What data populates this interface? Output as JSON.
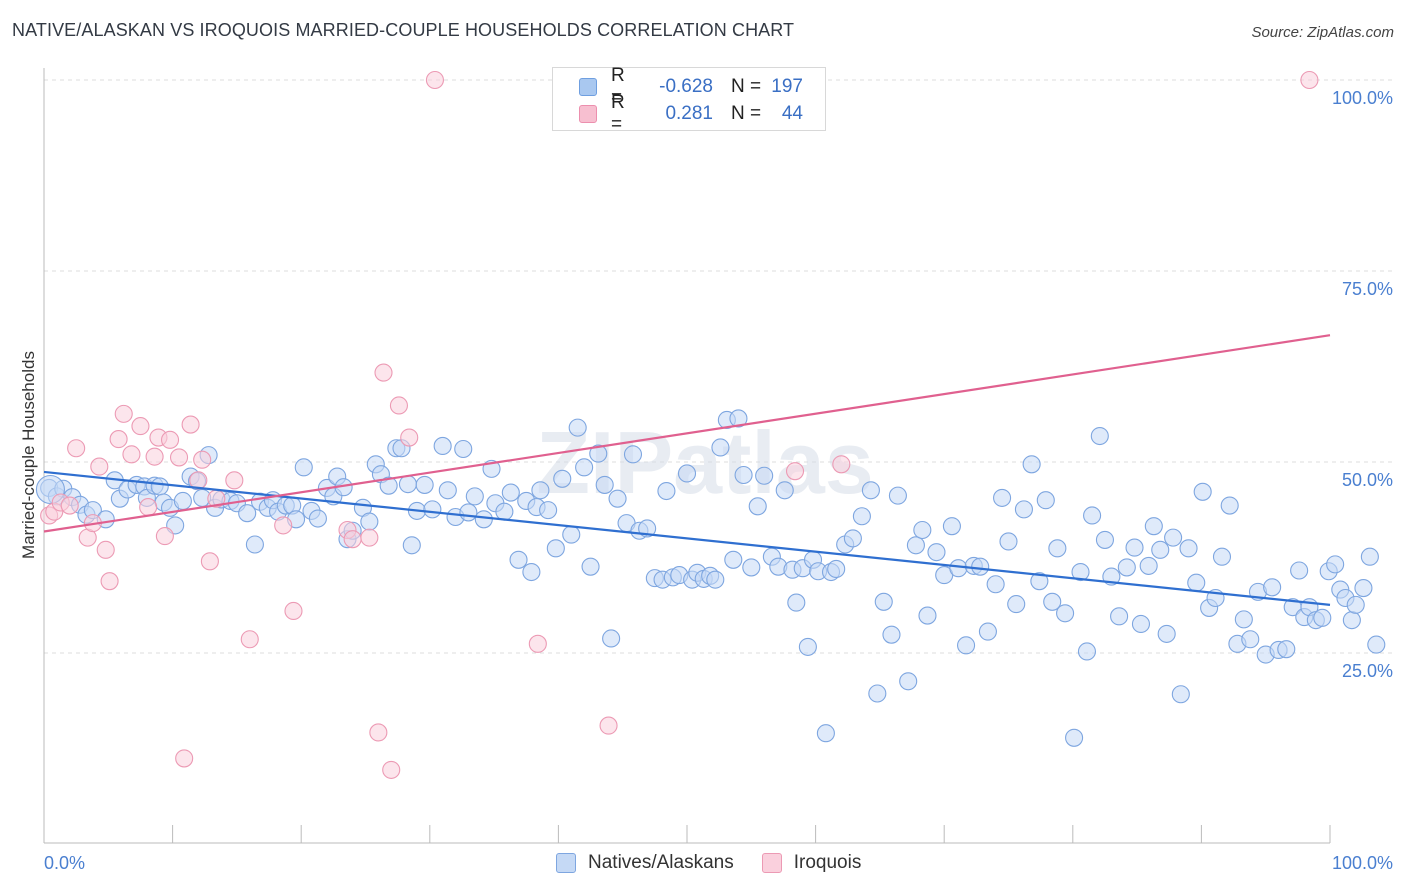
{
  "title": "NATIVE/ALASKAN VS IROQUOIS MARRIED-COUPLE HOUSEHOLDS CORRELATION CHART",
  "source": "Source: ZipAtlas.com",
  "watermark": "ZIPatlas",
  "legend": {
    "rows": [
      {
        "r_label": "R =",
        "r_value": "-0.628",
        "n_label": "N =",
        "n_value": "197",
        "color": "#a9c8f0",
        "stroke": "#6f9fe0"
      },
      {
        "r_label": "R =",
        "r_value": "0.281",
        "n_label": "N =",
        "n_value": "44",
        "color": "#f7bfd0",
        "stroke": "#ec8fae"
      }
    ]
  },
  "bottom_legend": [
    {
      "label": "Natives/Alaskans",
      "color": "#c5d9f5",
      "stroke": "#7ea6e0"
    },
    {
      "label": "Iroquois",
      "color": "#fad0dd",
      "stroke": "#ec9ab4"
    }
  ],
  "chart_data": {
    "type": "scatter",
    "title": "NATIVE/ALASKAN VS IROQUOIS MARRIED-COUPLE HOUSEHOLDS CORRELATION CHART",
    "xlabel": "",
    "ylabel": "Married-couple Households",
    "xlim": [
      0,
      100
    ],
    "ylim": [
      0,
      102
    ],
    "x_tick_labels": [
      "0.0%",
      "100.0%"
    ],
    "y_tick_labels": [
      "25.0%",
      "50.0%",
      "75.0%",
      "100.0%"
    ],
    "y_ticks": [
      25,
      50,
      75,
      100
    ],
    "grid": true,
    "series": [
      {
        "name": "Natives/Alaskans",
        "color": "#7ea6e0",
        "fill": "#c5d9f5",
        "trend": {
          "x": [
            0,
            100
          ],
          "y": [
            48.7,
            31.3
          ],
          "color": "#2f6fd0"
        },
        "points": [
          [
            0.4,
            46.6
          ],
          [
            1.0,
            45.5
          ],
          [
            1.5,
            46.5
          ],
          [
            2.2,
            45.4
          ],
          [
            2.8,
            44.4
          ],
          [
            3.3,
            43.1
          ],
          [
            3.8,
            43.7
          ],
          [
            4.8,
            42.5
          ],
          [
            5.5,
            47.6
          ],
          [
            5.9,
            45.2
          ],
          [
            6.5,
            46.4
          ],
          [
            7.2,
            47.0
          ],
          [
            7.8,
            46.8
          ],
          [
            8.0,
            45.3
          ],
          [
            8.6,
            46.9
          ],
          [
            9.0,
            46.8
          ],
          [
            9.3,
            44.7
          ],
          [
            9.8,
            44.0
          ],
          [
            10.2,
            41.7
          ],
          [
            10.8,
            44.9
          ],
          [
            11.4,
            48.1
          ],
          [
            11.9,
            47.5
          ],
          [
            12.3,
            45.3
          ],
          [
            12.8,
            50.9
          ],
          [
            13.3,
            44.0
          ],
          [
            13.8,
            45.1
          ],
          [
            14.5,
            44.9
          ],
          [
            15.0,
            44.6
          ],
          [
            15.8,
            43.3
          ],
          [
            16.4,
            39.2
          ],
          [
            16.8,
            44.8
          ],
          [
            17.4,
            44.0
          ],
          [
            17.8,
            45.0
          ],
          [
            18.2,
            43.5
          ],
          [
            18.8,
            44.3
          ],
          [
            19.3,
            44.3
          ],
          [
            19.6,
            42.5
          ],
          [
            20.2,
            49.3
          ],
          [
            20.8,
            43.6
          ],
          [
            21.3,
            42.6
          ],
          [
            22.0,
            46.6
          ],
          [
            22.5,
            45.5
          ],
          [
            22.8,
            48.1
          ],
          [
            23.3,
            46.7
          ],
          [
            23.6,
            39.9
          ],
          [
            24.0,
            41.0
          ],
          [
            24.8,
            44.0
          ],
          [
            25.3,
            42.2
          ],
          [
            25.8,
            49.7
          ],
          [
            26.2,
            48.4
          ],
          [
            26.8,
            46.9
          ],
          [
            27.4,
            51.8
          ],
          [
            27.8,
            51.8
          ],
          [
            28.3,
            47.1
          ],
          [
            28.6,
            39.1
          ],
          [
            29.0,
            43.6
          ],
          [
            29.6,
            47.0
          ],
          [
            30.2,
            43.8
          ],
          [
            31.0,
            52.1
          ],
          [
            31.4,
            46.3
          ],
          [
            32.0,
            42.8
          ],
          [
            32.6,
            51.7
          ],
          [
            33.0,
            43.4
          ],
          [
            33.5,
            45.5
          ],
          [
            34.2,
            42.5
          ],
          [
            34.8,
            49.1
          ],
          [
            35.1,
            44.6
          ],
          [
            35.8,
            43.5
          ],
          [
            36.3,
            46.0
          ],
          [
            36.9,
            37.2
          ],
          [
            37.5,
            44.9
          ],
          [
            37.9,
            35.6
          ],
          [
            38.3,
            44.1
          ],
          [
            38.6,
            46.3
          ],
          [
            39.2,
            43.7
          ],
          [
            39.8,
            38.7
          ],
          [
            40.3,
            47.8
          ],
          [
            41.0,
            40.5
          ],
          [
            41.5,
            54.5
          ],
          [
            42.0,
            49.3
          ],
          [
            42.5,
            36.3
          ],
          [
            43.1,
            51.1
          ],
          [
            43.6,
            47.0
          ],
          [
            44.1,
            26.9
          ],
          [
            44.6,
            45.2
          ],
          [
            45.3,
            42.0
          ],
          [
            45.8,
            51.0
          ],
          [
            46.3,
            41.0
          ],
          [
            46.9,
            41.3
          ],
          [
            47.5,
            34.8
          ],
          [
            48.1,
            34.6
          ],
          [
            48.4,
            46.2
          ],
          [
            48.9,
            34.9
          ],
          [
            49.4,
            35.2
          ],
          [
            50.0,
            48.5
          ],
          [
            50.4,
            34.6
          ],
          [
            50.8,
            35.5
          ],
          [
            51.3,
            34.7
          ],
          [
            51.8,
            35.1
          ],
          [
            52.2,
            34.6
          ],
          [
            52.6,
            51.9
          ],
          [
            53.1,
            55.5
          ],
          [
            53.6,
            37.2
          ],
          [
            54.0,
            55.7
          ],
          [
            54.4,
            48.3
          ],
          [
            55.0,
            36.2
          ],
          [
            55.5,
            44.2
          ],
          [
            56.0,
            48.2
          ],
          [
            56.6,
            37.6
          ],
          [
            57.1,
            36.3
          ],
          [
            57.6,
            46.3
          ],
          [
            58.2,
            35.9
          ],
          [
            58.5,
            31.6
          ],
          [
            59.0,
            36.1
          ],
          [
            59.4,
            25.8
          ],
          [
            59.8,
            37.2
          ],
          [
            60.2,
            35.7
          ],
          [
            60.8,
            14.5
          ],
          [
            61.2,
            35.6
          ],
          [
            61.6,
            36.0
          ],
          [
            62.3,
            39.2
          ],
          [
            62.9,
            40.0
          ],
          [
            63.6,
            42.9
          ],
          [
            64.3,
            46.3
          ],
          [
            64.8,
            19.7
          ],
          [
            65.3,
            31.7
          ],
          [
            65.9,
            27.4
          ],
          [
            66.4,
            45.6
          ],
          [
            67.2,
            21.3
          ],
          [
            67.8,
            39.1
          ],
          [
            68.3,
            41.1
          ],
          [
            68.7,
            29.9
          ],
          [
            69.4,
            38.2
          ],
          [
            70.0,
            35.2
          ],
          [
            70.6,
            41.6
          ],
          [
            71.1,
            36.1
          ],
          [
            71.7,
            26.0
          ],
          [
            72.3,
            36.4
          ],
          [
            72.8,
            36.3
          ],
          [
            73.4,
            27.8
          ],
          [
            74.0,
            34.0
          ],
          [
            74.5,
            45.3
          ],
          [
            75.0,
            39.6
          ],
          [
            75.6,
            31.4
          ],
          [
            76.2,
            43.8
          ],
          [
            76.8,
            49.7
          ],
          [
            77.4,
            34.4
          ],
          [
            77.9,
            45.0
          ],
          [
            78.4,
            31.7
          ],
          [
            78.8,
            38.7
          ],
          [
            79.4,
            30.2
          ],
          [
            80.1,
            13.9
          ],
          [
            80.6,
            35.6
          ],
          [
            81.1,
            25.2
          ],
          [
            81.5,
            43.0
          ],
          [
            82.1,
            53.4
          ],
          [
            82.5,
            39.8
          ],
          [
            83.0,
            35.0
          ],
          [
            83.6,
            29.8
          ],
          [
            84.2,
            36.2
          ],
          [
            84.8,
            38.8
          ],
          [
            85.3,
            28.8
          ],
          [
            85.9,
            36.4
          ],
          [
            86.3,
            41.6
          ],
          [
            86.8,
            38.5
          ],
          [
            87.3,
            27.5
          ],
          [
            87.8,
            40.1
          ],
          [
            88.4,
            19.6
          ],
          [
            89.0,
            38.7
          ],
          [
            89.6,
            34.2
          ],
          [
            90.1,
            46.1
          ],
          [
            90.6,
            30.9
          ],
          [
            91.1,
            32.2
          ],
          [
            91.6,
            37.6
          ],
          [
            92.2,
            44.3
          ],
          [
            92.8,
            26.2
          ],
          [
            93.3,
            29.4
          ],
          [
            93.8,
            26.8
          ],
          [
            94.4,
            33.0
          ],
          [
            95.0,
            24.8
          ],
          [
            95.5,
            33.6
          ],
          [
            96.0,
            25.4
          ],
          [
            96.6,
            25.5
          ],
          [
            97.1,
            31.0
          ],
          [
            97.6,
            35.8
          ],
          [
            98.0,
            29.7
          ],
          [
            98.4,
            31.0
          ],
          [
            98.9,
            29.3
          ],
          [
            99.4,
            29.6
          ],
          [
            99.9,
            35.7
          ],
          [
            100.4,
            36.6
          ],
          [
            100.8,
            33.3
          ],
          [
            101.2,
            32.2
          ],
          [
            101.7,
            29.3
          ],
          [
            102.0,
            31.3
          ],
          [
            102.6,
            33.5
          ],
          [
            103.1,
            37.6
          ],
          [
            103.6,
            26.1
          ]
        ]
      },
      {
        "name": "Iroquois",
        "color": "#ec9ab4",
        "fill": "#fad0dd",
        "trend": {
          "x": [
            0,
            100
          ],
          "y": [
            40.9,
            66.6
          ],
          "color": "#e0608f"
        },
        "points": [
          [
            0.4,
            43.0
          ],
          [
            0.8,
            43.5
          ],
          [
            1.3,
            44.7
          ],
          [
            2.0,
            44.3
          ],
          [
            2.5,
            51.8
          ],
          [
            3.4,
            40.1
          ],
          [
            3.8,
            42.0
          ],
          [
            4.3,
            49.4
          ],
          [
            4.8,
            38.5
          ],
          [
            5.1,
            34.4
          ],
          [
            5.8,
            53.0
          ],
          [
            6.2,
            56.3
          ],
          [
            6.8,
            51.0
          ],
          [
            7.5,
            54.7
          ],
          [
            8.1,
            44.1
          ],
          [
            8.6,
            50.7
          ],
          [
            8.9,
            53.2
          ],
          [
            9.4,
            40.3
          ],
          [
            9.8,
            52.9
          ],
          [
            10.5,
            50.6
          ],
          [
            10.9,
            11.2
          ],
          [
            11.4,
            54.9
          ],
          [
            12.0,
            47.6
          ],
          [
            12.3,
            50.3
          ],
          [
            12.9,
            37.0
          ],
          [
            13.4,
            45.2
          ],
          [
            14.8,
            47.6
          ],
          [
            16.0,
            26.8
          ],
          [
            18.6,
            41.7
          ],
          [
            19.4,
            30.5
          ],
          [
            23.6,
            41.1
          ],
          [
            24.0,
            39.9
          ],
          [
            25.3,
            40.1
          ],
          [
            26.0,
            14.6
          ],
          [
            26.4,
            61.7
          ],
          [
            27.0,
            9.7
          ],
          [
            27.6,
            57.4
          ],
          [
            28.4,
            53.2
          ],
          [
            30.4,
            100.0
          ],
          [
            38.4,
            26.2
          ],
          [
            43.9,
            15.5
          ],
          [
            58.4,
            48.8
          ],
          [
            62.0,
            49.7
          ],
          [
            98.4,
            100.0
          ]
        ]
      }
    ]
  }
}
